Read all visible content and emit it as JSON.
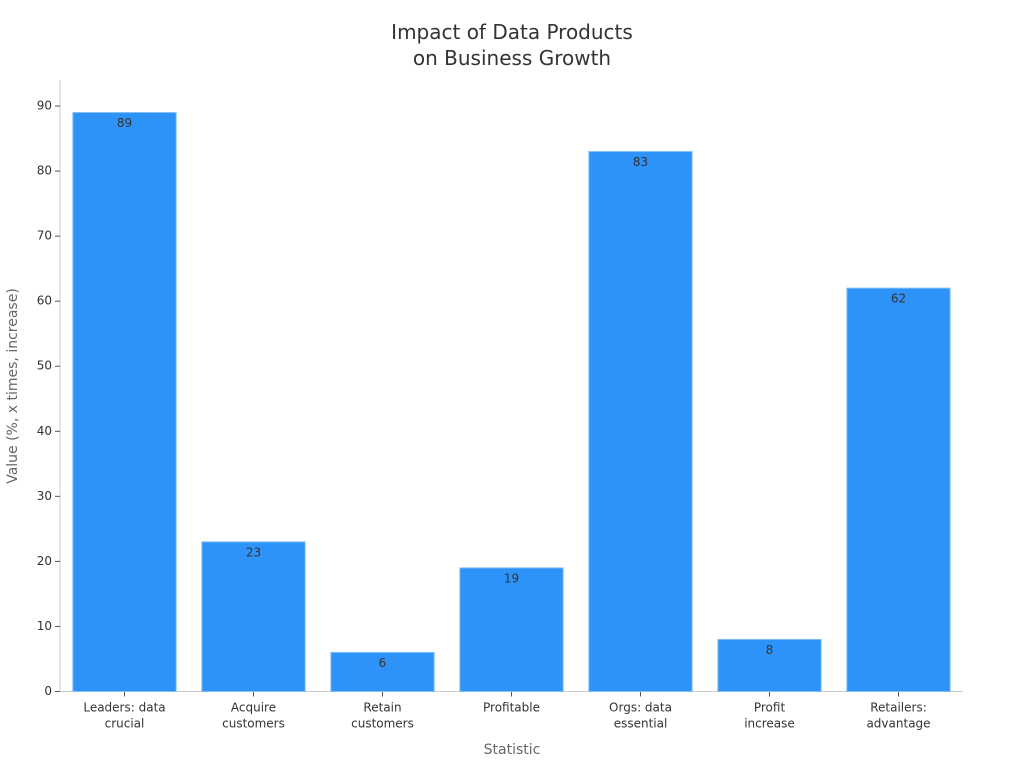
{
  "chart_data": {
    "type": "bar",
    "title": "Impact of Data Products on Business Growth",
    "x_label": "Statistic",
    "y_label": "Value (%, x times, increase)",
    "categories": [
      "Leaders: data crucial",
      "Acquire customers",
      "Retain customers",
      "Profitable",
      "Orgs: data essential",
      "Profit increase",
      "Retailers: advantage"
    ],
    "values": [
      89,
      23,
      6,
      19,
      83,
      8,
      62
    ],
    "color": "#2e93f8",
    "ylim": [
      0,
      94
    ],
    "yticks": [
      0,
      10,
      20,
      30,
      40,
      50,
      60,
      70,
      80,
      90
    ],
    "grid": false
  }
}
